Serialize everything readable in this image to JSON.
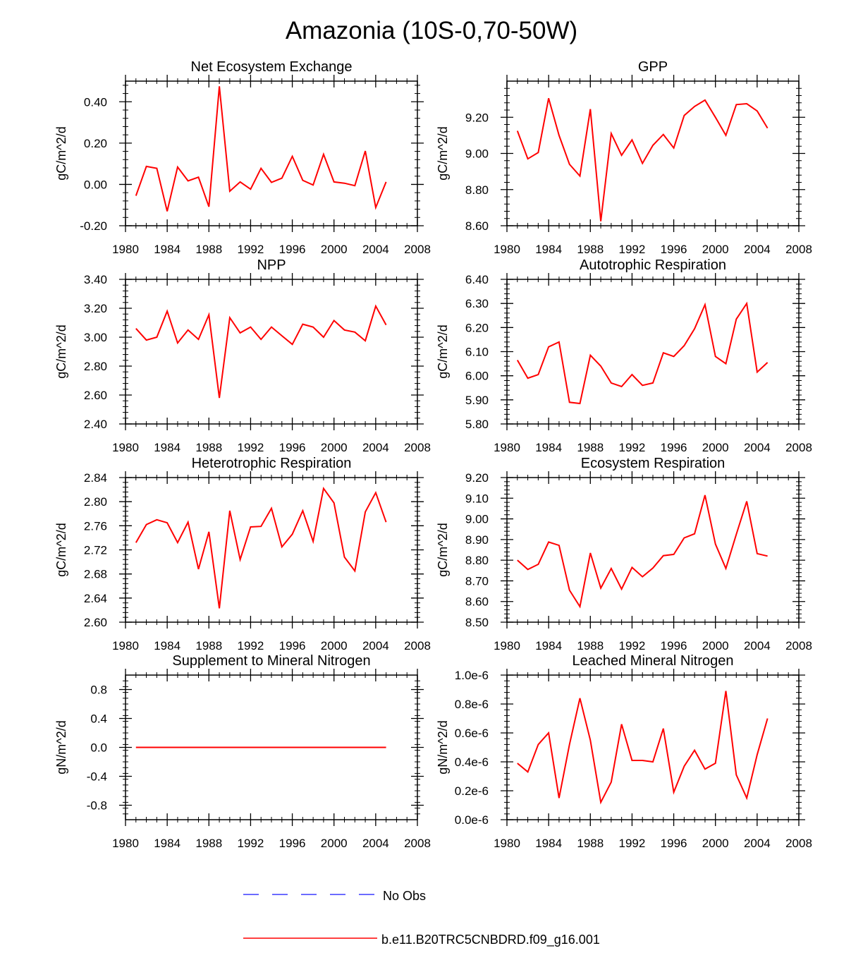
{
  "figure_title": "Amazonia (10S-0,70-50W)",
  "chart_data": [
    {
      "type": "line",
      "title": "Net Ecosystem Exchange",
      "ylabel": "gC/m^2/d",
      "xlim": [
        1980,
        2008
      ],
      "ylim": [
        -0.2,
        0.5
      ],
      "xticks": [
        1980,
        1984,
        1988,
        1992,
        1996,
        2000,
        2004,
        2008
      ],
      "xtick_labels": [
        "1980",
        "1984",
        "1988",
        "1992",
        "1996",
        "2000",
        "2004",
        "2008"
      ],
      "yticks": [
        -0.2,
        0.0,
        0.2,
        0.4
      ],
      "ytick_labels": [
        "-0.20",
        "0.00",
        "0.20",
        "0.40"
      ],
      "x": [
        1981,
        1982,
        1983,
        1984,
        1985,
        1986,
        1987,
        1988,
        1989,
        1990,
        1991,
        1992,
        1993,
        1994,
        1995,
        1996,
        1997,
        1998,
        1999,
        2000,
        2001,
        2002,
        2003,
        2004,
        2005
      ],
      "series": [
        {
          "name": "b.e11.B20TRC5CNBDRD.f09_g16.001",
          "values": [
            -0.055,
            0.087,
            0.078,
            -0.13,
            0.084,
            0.017,
            0.035,
            -0.108,
            0.475,
            -0.033,
            0.012,
            -0.023,
            0.078,
            0.01,
            0.03,
            0.136,
            0.02,
            -0.003,
            0.146,
            0.012,
            0.006,
            -0.006,
            0.162,
            -0.112,
            0.012
          ]
        }
      ]
    },
    {
      "type": "line",
      "title": "GPP",
      "ylabel": "gC/m^2/d",
      "xlim": [
        1980,
        2008
      ],
      "ylim": [
        8.6,
        9.4
      ],
      "xticks": [
        1980,
        1984,
        1988,
        1992,
        1996,
        2000,
        2004,
        2008
      ],
      "xtick_labels": [
        "1980",
        "1984",
        "1988",
        "1992",
        "1996",
        "2000",
        "2004",
        "2008"
      ],
      "yticks": [
        8.6,
        8.8,
        9.0,
        9.2
      ],
      "ytick_labels": [
        "8.60",
        "8.80",
        "9.00",
        "9.20"
      ],
      "x": [
        1981,
        1982,
        1983,
        1984,
        1985,
        1986,
        1987,
        1988,
        1989,
        1990,
        1991,
        1992,
        1993,
        1994,
        1995,
        1996,
        1997,
        1998,
        1999,
        2000,
        2001,
        2002,
        2003,
        2004,
        2005
      ],
      "series": [
        {
          "name": "b.e11.B20TRC5CNBDRD.f09_g16.001",
          "values": [
            9.125,
            8.97,
            9.005,
            9.305,
            9.1,
            8.94,
            8.875,
            9.245,
            8.625,
            9.11,
            8.99,
            9.075,
            8.945,
            9.045,
            9.105,
            9.03,
            9.21,
            9.26,
            9.295,
            9.2,
            9.1,
            9.27,
            9.275,
            9.235,
            9.14
          ]
        }
      ]
    },
    {
      "type": "line",
      "title": "NPP",
      "ylabel": "gC/m^2/d",
      "xlim": [
        1980,
        2008
      ],
      "ylim": [
        2.4,
        3.4
      ],
      "xticks": [
        1980,
        1984,
        1988,
        1992,
        1996,
        2000,
        2004,
        2008
      ],
      "xtick_labels": [
        "1980",
        "1984",
        "1988",
        "1992",
        "1996",
        "2000",
        "2004",
        "2008"
      ],
      "yticks": [
        2.4,
        2.6,
        2.8,
        3.0,
        3.2,
        3.4
      ],
      "ytick_labels": [
        "2.40",
        "2.60",
        "2.80",
        "3.00",
        "3.20",
        "3.40"
      ],
      "x": [
        1981,
        1982,
        1983,
        1984,
        1985,
        1986,
        1987,
        1988,
        1989,
        1990,
        1991,
        1992,
        1993,
        1994,
        1995,
        1996,
        1997,
        1998,
        1999,
        2000,
        2001,
        2002,
        2003,
        2004,
        2005
      ],
      "series": [
        {
          "name": "b.e11.B20TRC5CNBDRD.f09_g16.001",
          "values": [
            3.06,
            2.98,
            3.0,
            3.18,
            2.96,
            3.05,
            2.985,
            3.155,
            2.58,
            3.135,
            3.03,
            3.07,
            2.985,
            3.07,
            3.01,
            2.95,
            3.09,
            3.07,
            3.0,
            3.115,
            3.05,
            3.035,
            2.975,
            3.215,
            3.085
          ]
        }
      ]
    },
    {
      "type": "line",
      "title": "Autotrophic Respiration",
      "ylabel": "gC/m^2/d",
      "xlim": [
        1980,
        2008
      ],
      "ylim": [
        5.8,
        6.4
      ],
      "xticks": [
        1980,
        1984,
        1988,
        1992,
        1996,
        2000,
        2004,
        2008
      ],
      "xtick_labels": [
        "1980",
        "1984",
        "1988",
        "1992",
        "1996",
        "2000",
        "2004",
        "2008"
      ],
      "yticks": [
        5.8,
        5.9,
        6.0,
        6.1,
        6.2,
        6.3,
        6.4
      ],
      "ytick_labels": [
        "5.80",
        "5.90",
        "6.00",
        "6.10",
        "6.20",
        "6.30",
        "6.40"
      ],
      "x": [
        1981,
        1982,
        1983,
        1984,
        1985,
        1986,
        1987,
        1988,
        1989,
        1990,
        1991,
        1992,
        1993,
        1994,
        1995,
        1996,
        1997,
        1998,
        1999,
        2000,
        2001,
        2002,
        2003,
        2004,
        2005
      ],
      "series": [
        {
          "name": "b.e11.B20TRC5CNBDRD.f09_g16.001",
          "values": [
            6.065,
            5.99,
            6.005,
            6.12,
            6.14,
            5.89,
            5.885,
            6.085,
            6.04,
            5.97,
            5.955,
            6.005,
            5.96,
            5.97,
            6.095,
            6.08,
            6.125,
            6.195,
            6.295,
            6.08,
            6.05,
            6.235,
            6.3,
            6.015,
            6.055
          ]
        }
      ]
    },
    {
      "type": "line",
      "title": "Heterotrophic Respiration",
      "ylabel": "gC/m^2/d",
      "xlim": [
        1980,
        2008
      ],
      "ylim": [
        2.6,
        2.84
      ],
      "xticks": [
        1980,
        1984,
        1988,
        1992,
        1996,
        2000,
        2004,
        2008
      ],
      "xtick_labels": [
        "1980",
        "1984",
        "1988",
        "1992",
        "1996",
        "2000",
        "2004",
        "2008"
      ],
      "yticks": [
        2.6,
        2.64,
        2.68,
        2.72,
        2.76,
        2.8,
        2.84
      ],
      "ytick_labels": [
        "2.60",
        "2.64",
        "2.68",
        "2.72",
        "2.76",
        "2.80",
        "2.84"
      ],
      "x": [
        1981,
        1982,
        1983,
        1984,
        1985,
        1986,
        1987,
        1988,
        1989,
        1990,
        1991,
        1992,
        1993,
        1994,
        1995,
        1996,
        1997,
        1998,
        1999,
        2000,
        2001,
        2002,
        2003,
        2004,
        2005
      ],
      "series": [
        {
          "name": "b.e11.B20TRC5CNBDRD.f09_g16.001",
          "values": [
            2.732,
            2.762,
            2.77,
            2.765,
            2.732,
            2.766,
            2.688,
            2.75,
            2.623,
            2.785,
            2.704,
            2.758,
            2.759,
            2.789,
            2.725,
            2.746,
            2.785,
            2.734,
            2.822,
            2.798,
            2.708,
            2.685,
            2.783,
            2.815,
            2.766
          ]
        }
      ]
    },
    {
      "type": "line",
      "title": "Ecosystem Respiration",
      "ylabel": "gC/m^2/d",
      "xlim": [
        1980,
        2008
      ],
      "ylim": [
        8.5,
        9.2
      ],
      "xticks": [
        1980,
        1984,
        1988,
        1992,
        1996,
        2000,
        2004,
        2008
      ],
      "xtick_labels": [
        "1980",
        "1984",
        "1988",
        "1992",
        "1996",
        "2000",
        "2004",
        "2008"
      ],
      "yticks": [
        8.5,
        8.6,
        8.7,
        8.8,
        8.9,
        9.0,
        9.1,
        9.2
      ],
      "ytick_labels": [
        "8.50",
        "8.60",
        "8.70",
        "8.80",
        "8.90",
        "9.00",
        "9.10",
        "9.20"
      ],
      "x": [
        1981,
        1982,
        1983,
        1984,
        1985,
        1986,
        1987,
        1988,
        1989,
        1990,
        1991,
        1992,
        1993,
        1994,
        1995,
        1996,
        1997,
        1998,
        1999,
        2000,
        2001,
        2002,
        2003,
        2004,
        2005
      ],
      "series": [
        {
          "name": "b.e11.B20TRC5CNBDRD.f09_g16.001",
          "values": [
            8.8,
            8.755,
            8.78,
            8.888,
            8.872,
            8.655,
            8.575,
            8.835,
            8.665,
            8.76,
            8.66,
            8.765,
            8.72,
            8.762,
            8.822,
            8.828,
            8.908,
            8.928,
            9.115,
            8.878,
            8.76,
            8.925,
            9.085,
            8.832,
            8.82
          ]
        }
      ]
    },
    {
      "type": "line",
      "title": "Supplement to Mineral Nitrogen",
      "ylabel": "gN/m^2/d",
      "xlim": [
        1980,
        2008
      ],
      "ylim": [
        -1.0,
        1.0
      ],
      "xticks": [
        1980,
        1984,
        1988,
        1992,
        1996,
        2000,
        2004,
        2008
      ],
      "xtick_labels": [
        "1980",
        "1984",
        "1988",
        "1992",
        "1996",
        "2000",
        "2004",
        "2008"
      ],
      "yticks": [
        -0.8,
        -0.4,
        0.0,
        0.4,
        0.8
      ],
      "ytick_labels": [
        "-0.8",
        "-0.4",
        "0.0",
        "0.4",
        "0.8"
      ],
      "x": [
        1981,
        1982,
        1983,
        1984,
        1985,
        1986,
        1987,
        1988,
        1989,
        1990,
        1991,
        1992,
        1993,
        1994,
        1995,
        1996,
        1997,
        1998,
        1999,
        2000,
        2001,
        2002,
        2003,
        2004,
        2005
      ],
      "series": [
        {
          "name": "b.e11.B20TRC5CNBDRD.f09_g16.001",
          "values": [
            0,
            0,
            0,
            0,
            0,
            0,
            0,
            0,
            0,
            0,
            0,
            0,
            0,
            0,
            0,
            0,
            0,
            0,
            0,
            0,
            0,
            0,
            0,
            0,
            0
          ]
        }
      ]
    },
    {
      "type": "line",
      "title": "Leached Mineral Nitrogen",
      "ylabel": "gN/m^2/d",
      "xlim": [
        1980,
        2008
      ],
      "ylim": [
        0.0,
        1.0
      ],
      "xticks": [
        1980,
        1984,
        1988,
        1992,
        1996,
        2000,
        2004,
        2008
      ],
      "xtick_labels": [
        "1980",
        "1984",
        "1988",
        "1992",
        "1996",
        "2000",
        "2004",
        "2008"
      ],
      "yticks": [
        0.0,
        0.2,
        0.4,
        0.6,
        0.8,
        1.0
      ],
      "ytick_labels": [
        "0.0e-6",
        "0.2e-6",
        "0.4e-6",
        "0.6e-6",
        "0.8e-6",
        "1.0e-6"
      ],
      "x": [
        1981,
        1982,
        1983,
        1984,
        1985,
        1986,
        1987,
        1988,
        1989,
        1990,
        1991,
        1992,
        1993,
        1994,
        1995,
        1996,
        1997,
        1998,
        1999,
        2000,
        2001,
        2002,
        2003,
        2004,
        2005
      ],
      "series": [
        {
          "name": "b.e11.B20TRC5CNBDRD.f09_g16.001",
          "values": [
            0.39,
            0.33,
            0.52,
            0.6,
            0.15,
            0.52,
            0.84,
            0.55,
            0.12,
            0.26,
            0.66,
            0.41,
            0.41,
            0.4,
            0.63,
            0.19,
            0.37,
            0.48,
            0.35,
            0.39,
            0.89,
            0.31,
            0.15,
            0.45,
            0.7
          ]
        }
      ]
    }
  ],
  "legend": [
    {
      "label": "No Obs",
      "color": "#3b3bff",
      "dash": true
    },
    {
      "label": "b.e11.B20TRC5CNBDRD.f09_g16.001",
      "color": "#ff0000",
      "dash": false
    }
  ]
}
